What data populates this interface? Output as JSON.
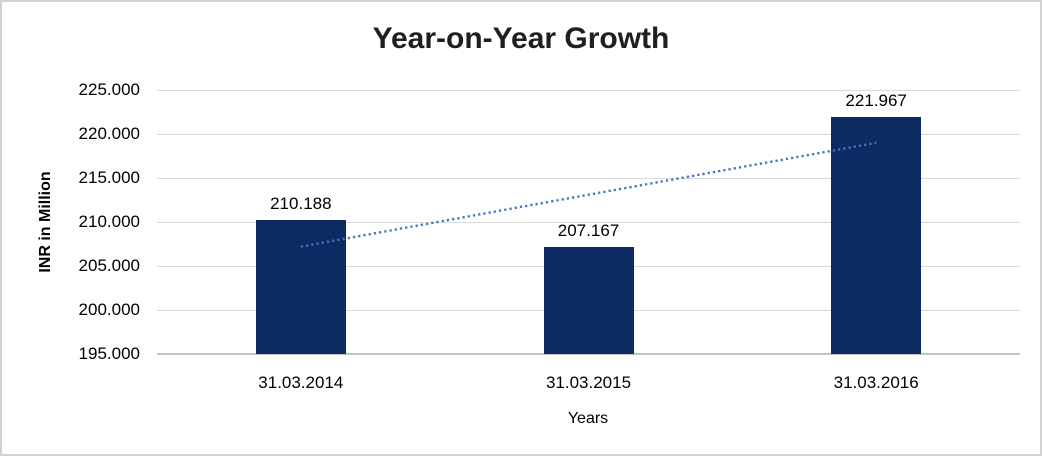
{
  "chart": {
    "title": "Year-on-Year Growth",
    "background": "#ffffff",
    "border_color": "#d2d2d2"
  },
  "chart_data": {
    "type": "bar",
    "title": "Year-on-Year Growth",
    "xlabel": "Years",
    "ylabel": "INR in Million",
    "categories": [
      "31.03.2014",
      "31.03.2015",
      "31.03.2016"
    ],
    "values": [
      210.188,
      207.167,
      221.967
    ],
    "value_labels": [
      "210.188",
      "207.167",
      "221.967"
    ],
    "ylim": [
      195,
      225
    ],
    "ytick_values": [
      225,
      220,
      215,
      210,
      205,
      200,
      195
    ],
    "ytick_labels": [
      "225.000",
      "220.000",
      "215.000",
      "210.000",
      "205.000",
      "200.000",
      "195.000"
    ],
    "grid": true,
    "legend": "none",
    "bar_color": "#0d2a63",
    "gridline_color": "#d9d9d9",
    "trendline": {
      "type": "linear",
      "style": "dotted",
      "color": "#4472c4",
      "start_value": 207.2,
      "end_value": 219.0
    }
  }
}
